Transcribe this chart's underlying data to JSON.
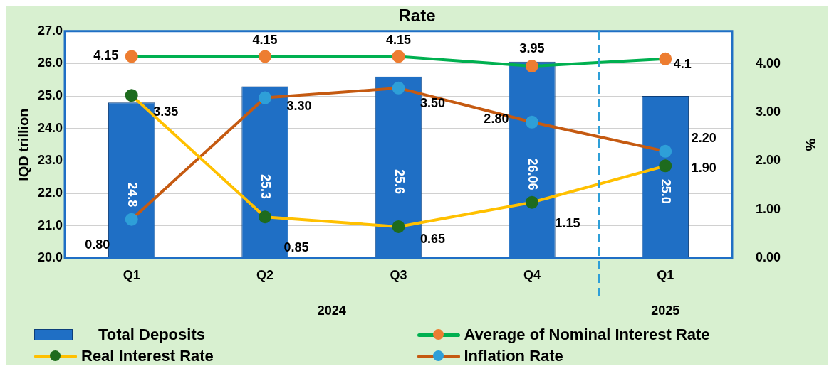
{
  "chart_data": {
    "type": "bar",
    "title": "Rate",
    "categories": [
      "Q1",
      "Q2",
      "Q3",
      "Q4",
      "Q1"
    ],
    "ylabel": "IQD trillion",
    "y2label": "%",
    "ylim": [
      20,
      27
    ],
    "yticks": [
      {
        "value": 20,
        "label": "20.0"
      },
      {
        "value": 21,
        "label": "21.0"
      },
      {
        "value": 22,
        "label": "22.0"
      },
      {
        "value": 23,
        "label": "23.0"
      },
      {
        "value": 24,
        "label": "24.0"
      },
      {
        "value": 25,
        "label": "25.0"
      },
      {
        "value": 26,
        "label": "26.0"
      },
      {
        "value": 27,
        "label": "27.0"
      }
    ],
    "y2lim": [
      0,
      4.67
    ],
    "y2ticks": [
      {
        "value": 0,
        "label": "0.00"
      },
      {
        "value": 1,
        "label": "1.00"
      },
      {
        "value": 2,
        "label": "2.00"
      },
      {
        "value": 3,
        "label": "3.00"
      },
      {
        "value": 4,
        "label": "4.00"
      }
    ],
    "annotations": [
      "2024",
      "2025"
    ],
    "grid": "y",
    "legend": "bottom",
    "marker": "circle",
    "series": [
      {
        "name": "Total Deposits",
        "color": "#1f6fc5",
        "values": [
          24.8,
          25.3,
          25.6,
          26.06,
          25.0
        ],
        "value_labels": [
          "24.8",
          "25.3",
          "25.6",
          "26.06",
          "25.0"
        ]
      },
      {
        "name": "Average of Nominal Interest Rate",
        "type": "line",
        "axis": "y2",
        "color": "#00b050",
        "colors": [
          "#ed7d31",
          "#ed7d31",
          "#ed7d31",
          "#ed7d31",
          "#ed7d31"
        ],
        "values": [
          4.15,
          4.15,
          4.15,
          3.95,
          4.1
        ],
        "value_labels": [
          "4.15",
          "4.15",
          "4.15",
          "3.95",
          "4.1"
        ]
      },
      {
        "name": "Real Interest Rate",
        "type": "line",
        "axis": "y2",
        "color": "#ffc000",
        "colors": [
          "#1e6b1e",
          "#1e6b1e",
          "#1e6b1e",
          "#1e6b1e",
          "#1e6b1e"
        ],
        "values": [
          3.35,
          0.85,
          0.65,
          1.15,
          1.9
        ],
        "value_labels": [
          "3.35",
          "0.85",
          "0.65",
          "1.15",
          "1.90"
        ]
      },
      {
        "name": "Inflation Rate",
        "type": "line",
        "axis": "y2",
        "color": "#c55a11",
        "colors": [
          "#2e9fd8",
          "#2e9fd8",
          "#2e9fd8",
          "#2e9fd8",
          "#2e9fd8"
        ],
        "values": [
          0.8,
          3.3,
          3.5,
          2.8,
          2.2
        ],
        "value_labels": [
          "0.80",
          "3.30",
          "3.50",
          "2.80",
          "2.20"
        ]
      }
    ]
  }
}
